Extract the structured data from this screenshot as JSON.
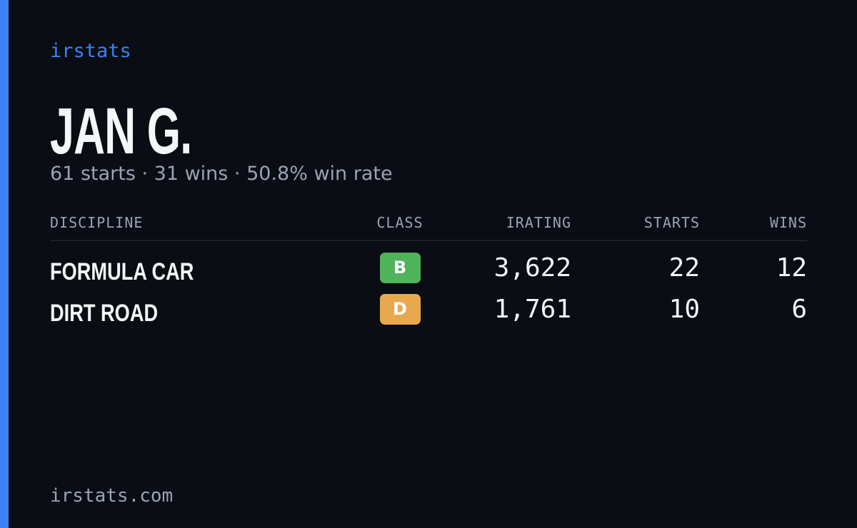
{
  "brand": "irstats",
  "driver": {
    "name": "JAN G.",
    "summary": "61 starts · 31 wins · 50.8% win rate"
  },
  "table": {
    "headers": [
      "DISCIPLINE",
      "CLASS",
      "IRATING",
      "STARTS",
      "WINS"
    ],
    "rows": [
      {
        "discipline": "FORMULA CAR",
        "class": "B",
        "class_color": "#4fb35a",
        "irating": "3,622",
        "starts": 22,
        "wins": 12
      },
      {
        "discipline": "DIRT ROAD",
        "class": "D",
        "class_color": "#e8a94e",
        "irating": "1,761",
        "starts": 10,
        "wins": 6
      }
    ]
  },
  "footer": "irstats.com"
}
